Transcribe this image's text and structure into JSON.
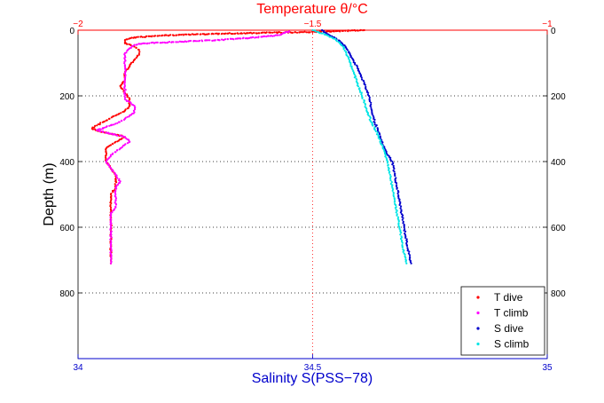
{
  "chart_data": {
    "type": "scatter",
    "top_axis": {
      "label": "Temperature θ/°C",
      "color": "#ff0000",
      "range": [
        -2,
        -1
      ],
      "ticks": [
        "−2",
        "−1.5",
        "−1"
      ],
      "tick_values": [
        -2,
        -1.5,
        -1
      ]
    },
    "bottom_axis": {
      "label": "Salinity S(PSS−78)",
      "color": "#0000cc",
      "range": [
        34,
        35
      ],
      "ticks": [
        "34",
        "34.5",
        "35"
      ],
      "tick_values": [
        34,
        34.5,
        35
      ]
    },
    "y_axis": {
      "label": "Depth (m)",
      "range": [
        0,
        1000
      ],
      "inverted": true,
      "ticks": [
        "0",
        "200",
        "400",
        "600",
        "800"
      ],
      "tick_values": [
        0,
        200,
        400,
        600,
        800
      ]
    },
    "grid": "dotted",
    "legend": {
      "position": "bottom-right",
      "entries": [
        "T dive",
        "T climb",
        "S dive",
        "S climb"
      ]
    },
    "series": [
      {
        "name": "T dive",
        "axis": "top",
        "color": "#ff0000",
        "points": [
          [
            -1.39,
            0
          ],
          [
            -1.45,
            3
          ],
          [
            -1.52,
            6
          ],
          [
            -1.6,
            8
          ],
          [
            -1.68,
            10
          ],
          [
            -1.75,
            13
          ],
          [
            -1.82,
            16
          ],
          [
            -1.88,
            22
          ],
          [
            -1.9,
            30
          ],
          [
            -1.9,
            40
          ],
          [
            -1.88,
            50
          ],
          [
            -1.87,
            60
          ],
          [
            -1.87,
            75
          ],
          [
            -1.88,
            90
          ],
          [
            -1.89,
            110
          ],
          [
            -1.9,
            130
          ],
          [
            -1.9,
            150
          ],
          [
            -1.91,
            170
          ],
          [
            -1.9,
            190
          ],
          [
            -1.89,
            210
          ],
          [
            -1.89,
            230
          ],
          [
            -1.9,
            245
          ],
          [
            -1.92,
            260
          ],
          [
            -1.94,
            275
          ],
          [
            -1.96,
            290
          ],
          [
            -1.97,
            300
          ],
          [
            -1.95,
            310
          ],
          [
            -1.92,
            318
          ],
          [
            -1.9,
            325
          ],
          [
            -1.92,
            340
          ],
          [
            -1.94,
            360
          ],
          [
            -1.94,
            380
          ],
          [
            -1.94,
            400
          ],
          [
            -1.93,
            420
          ],
          [
            -1.92,
            440
          ],
          [
            -1.92,
            460
          ],
          [
            -1.92,
            480
          ],
          [
            -1.93,
            500
          ],
          [
            -1.93,
            520
          ],
          [
            -1.93,
            540
          ],
          [
            -1.93,
            560
          ],
          [
            -1.93,
            580
          ],
          [
            -1.93,
            600
          ],
          [
            -1.93,
            620
          ],
          [
            -1.93,
            640
          ],
          [
            -1.93,
            660
          ],
          [
            -1.93,
            680
          ],
          [
            -1.93,
            700
          ],
          [
            -1.93,
            710
          ]
        ]
      },
      {
        "name": "T climb",
        "axis": "top",
        "color": "#ff00ff",
        "points": [
          [
            -1.93,
            710
          ],
          [
            -1.93,
            700
          ],
          [
            -1.93,
            680
          ],
          [
            -1.93,
            660
          ],
          [
            -1.93,
            640
          ],
          [
            -1.93,
            620
          ],
          [
            -1.93,
            600
          ],
          [
            -1.93,
            580
          ],
          [
            -1.93,
            560
          ],
          [
            -1.92,
            540
          ],
          [
            -1.92,
            520
          ],
          [
            -1.92,
            500
          ],
          [
            -1.92,
            480
          ],
          [
            -1.91,
            460
          ],
          [
            -1.92,
            440
          ],
          [
            -1.93,
            420
          ],
          [
            -1.94,
            400
          ],
          [
            -1.93,
            380
          ],
          [
            -1.91,
            360
          ],
          [
            -1.89,
            340
          ],
          [
            -1.9,
            325
          ],
          [
            -1.93,
            315
          ],
          [
            -1.96,
            305
          ],
          [
            -1.94,
            295
          ],
          [
            -1.92,
            285
          ],
          [
            -1.9,
            270
          ],
          [
            -1.88,
            250
          ],
          [
            -1.88,
            230
          ],
          [
            -1.9,
            210
          ],
          [
            -1.9,
            190
          ],
          [
            -1.9,
            170
          ],
          [
            -1.9,
            150
          ],
          [
            -1.9,
            130
          ],
          [
            -1.9,
            110
          ],
          [
            -1.9,
            90
          ],
          [
            -1.9,
            70
          ],
          [
            -1.89,
            55
          ],
          [
            -1.88,
            45
          ],
          [
            -1.86,
            40
          ],
          [
            -1.78,
            35
          ],
          [
            -1.7,
            30
          ],
          [
            -1.62,
            22
          ],
          [
            -1.57,
            15
          ],
          [
            -1.56,
            8
          ],
          [
            -1.55,
            3
          ]
        ]
      },
      {
        "name": "S dive",
        "axis": "bottom",
        "color": "#0000cc",
        "points": [
          [
            34.52,
            0
          ],
          [
            34.53,
            10
          ],
          [
            34.55,
            25
          ],
          [
            34.57,
            50
          ],
          [
            34.58,
            75
          ],
          [
            34.59,
            100
          ],
          [
            34.6,
            130
          ],
          [
            34.61,
            160
          ],
          [
            34.62,
            200
          ],
          [
            34.625,
            240
          ],
          [
            34.63,
            270
          ],
          [
            34.64,
            310
          ],
          [
            34.65,
            350
          ],
          [
            34.66,
            380
          ],
          [
            34.67,
            400
          ],
          [
            34.675,
            440
          ],
          [
            34.68,
            480
          ],
          [
            34.685,
            520
          ],
          [
            34.69,
            560
          ],
          [
            34.695,
            600
          ],
          [
            34.7,
            640
          ],
          [
            34.705,
            680
          ],
          [
            34.71,
            710
          ]
        ]
      },
      {
        "name": "S climb",
        "axis": "bottom",
        "color": "#00e5e5",
        "points": [
          [
            34.7,
            710
          ],
          [
            34.695,
            680
          ],
          [
            34.69,
            640
          ],
          [
            34.685,
            600
          ],
          [
            34.68,
            560
          ],
          [
            34.675,
            520
          ],
          [
            34.67,
            480
          ],
          [
            34.665,
            440
          ],
          [
            34.66,
            400
          ],
          [
            34.65,
            360
          ],
          [
            34.64,
            320
          ],
          [
            34.625,
            280
          ],
          [
            34.615,
            240
          ],
          [
            34.605,
            200
          ],
          [
            34.595,
            160
          ],
          [
            34.585,
            120
          ],
          [
            34.575,
            80
          ],
          [
            34.565,
            50
          ],
          [
            34.55,
            30
          ],
          [
            34.53,
            15
          ],
          [
            34.51,
            5
          ],
          [
            34.5,
            0
          ]
        ]
      }
    ]
  }
}
